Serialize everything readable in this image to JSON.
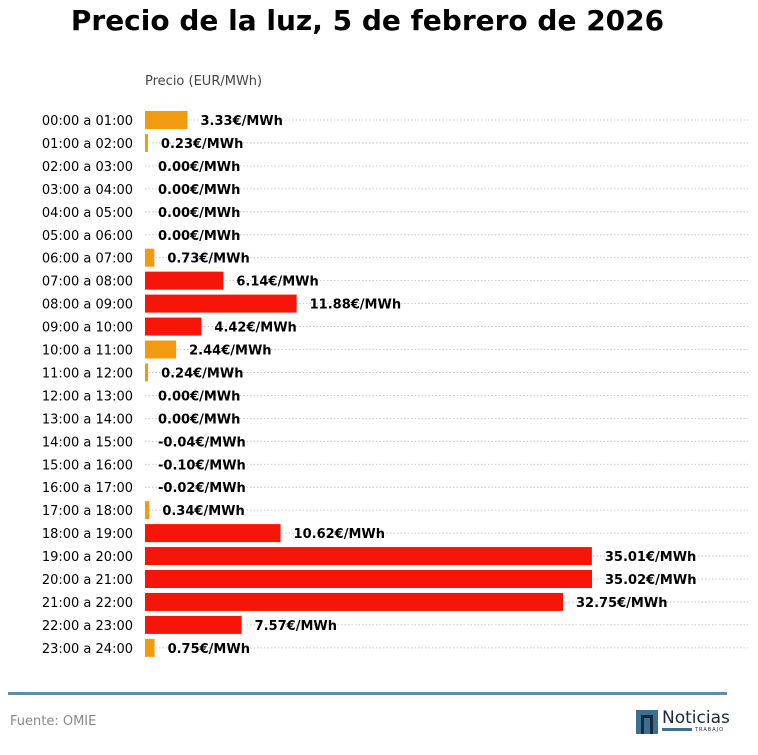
{
  "chart_data": {
    "type": "bar",
    "orientation": "horizontal",
    "title": "Precio de la luz, 5 de febrero de 2026",
    "ylabel": "Precio (EUR/MWh)",
    "categories": [
      "00:00 a 01:00",
      "01:00 a 02:00",
      "02:00 a 03:00",
      "03:00 a 04:00",
      "04:00 a 05:00",
      "05:00 a 06:00",
      "06:00 a 07:00",
      "07:00 a 08:00",
      "08:00 a 09:00",
      "09:00 a 10:00",
      "10:00 a 11:00",
      "11:00 a 12:00",
      "12:00 a 13:00",
      "13:00 a 14:00",
      "14:00 a 15:00",
      "15:00 a 16:00",
      "16:00 a 17:00",
      "17:00 a 18:00",
      "18:00 a 19:00",
      "19:00 a 20:00",
      "20:00 a 21:00",
      "21:00 a 22:00",
      "22:00 a 23:00",
      "23:00 a 24:00"
    ],
    "values": [
      3.33,
      0.23,
      0.0,
      0.0,
      0.0,
      0.0,
      0.73,
      6.14,
      11.88,
      4.42,
      2.44,
      0.24,
      0.0,
      0.0,
      -0.04,
      -0.1,
      -0.02,
      0.34,
      10.62,
      35.01,
      35.02,
      32.75,
      7.57,
      0.75
    ],
    "value_labels": [
      "3.33€/MWh",
      "0.23€/MWh",
      "0.00€/MWh",
      "0.00€/MWh",
      "0.00€/MWh",
      "0.00€/MWh",
      "0.73€/MWh",
      "6.14€/MWh",
      "11.88€/MWh",
      "4.42€/MWh",
      "2.44€/MWh",
      "0.24€/MWh",
      "0.00€/MWh",
      "0.00€/MWh",
      "-0.04€/MWh",
      "-0.10€/MWh",
      "-0.02€/MWh",
      "0.34€/MWh",
      "10.62€/MWh",
      "35.01€/MWh",
      "35.02€/MWh",
      "32.75€/MWh",
      "7.57€/MWh",
      "0.75€/MWh"
    ],
    "bar_colors": [
      "#f29b11",
      "#f29b11",
      "#f29b11",
      "#f29b11",
      "#f29b11",
      "#f29b11",
      "#f29b11",
      "#f71408",
      "#f71408",
      "#f71408",
      "#f29b11",
      "#f29b11",
      "#f29b11",
      "#f29b11",
      "#f29b11",
      "#f29b11",
      "#f29b11",
      "#f29b11",
      "#f71408",
      "#f71408",
      "#f71408",
      "#f71408",
      "#f71408",
      "#f29b11"
    ],
    "xlim": [
      0,
      35.02
    ],
    "grid": true
  },
  "footer": {
    "source": "Fuente: OMIE",
    "logo_text": "Noticias",
    "logo_sub": "TRABAJO"
  }
}
